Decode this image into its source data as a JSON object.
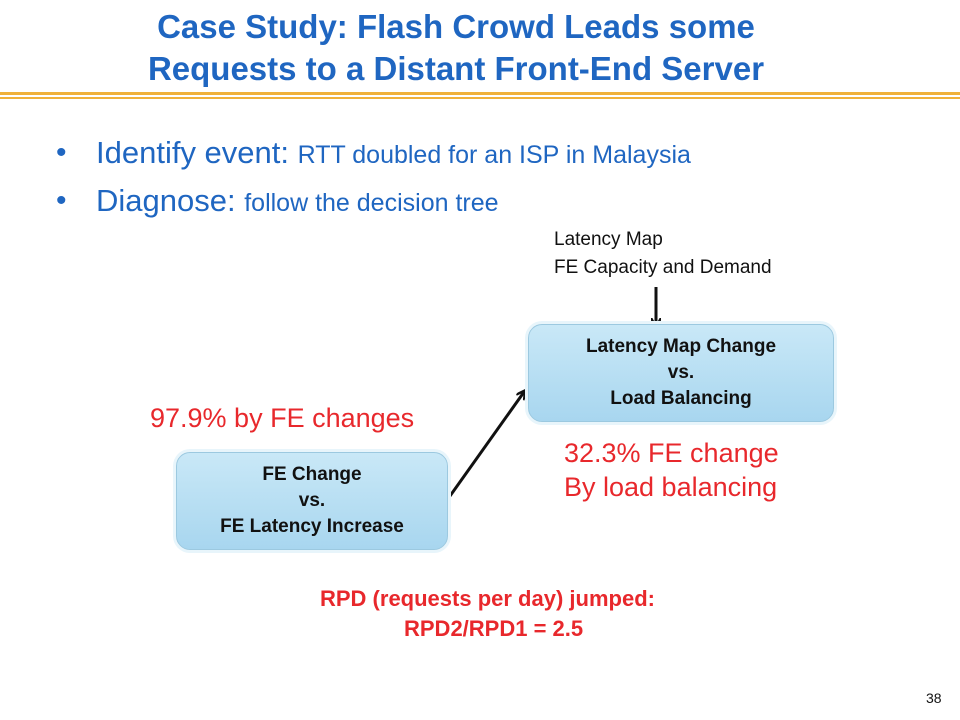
{
  "slide": {
    "title_line1": "Case Study: Flash Crowd Leads some",
    "title_line2": "Requests to a Distant Front-End Server",
    "page_number": "38"
  },
  "bullets": [
    {
      "marker": "•",
      "lead": "Identify event: ",
      "rest": "RTT doubled for an ISP in Malaysia"
    },
    {
      "marker": "•",
      "lead": "Diagnose: ",
      "rest": "follow the decision tree"
    }
  ],
  "inputs": {
    "line1": "Latency Map",
    "line2": "FE Capacity and Demand"
  },
  "box_top": {
    "line1": "Latency Map Change",
    "line2": "vs.",
    "line3": "Load Balancing"
  },
  "box_bottom": {
    "line1": "FE Change",
    "line2": "vs.",
    "line3": "FE Latency Increase"
  },
  "annotations": {
    "fe_changes": "97.9% by FE changes",
    "fe_change_line1": "32.3% FE change",
    "fe_change_line2": "By load balancing",
    "rpd_line1": "RPD (requests per day) jumped:",
    "rpd_line2": "RPD2/RPD1 = 2.5"
  },
  "colors": {
    "title": "#1f66c1",
    "accent_rule": "#f0b13a",
    "highlight_text": "#e8282c",
    "box_fill": "#b8def2"
  }
}
